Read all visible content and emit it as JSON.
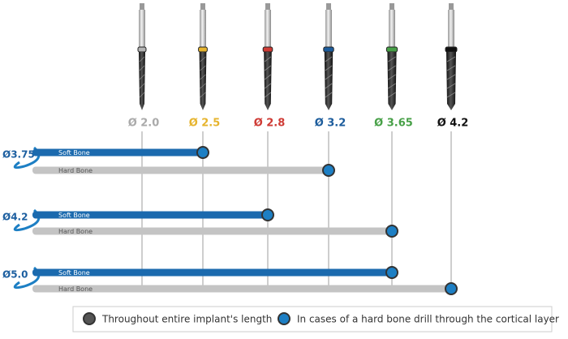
{
  "drills": [
    {
      "label": "Ø 2.0",
      "color": "#b5b5b5"
    },
    {
      "label": "Ø 2.5",
      "color": "#e6b42e"
    },
    {
      "label": "Ø 2.8",
      "color": "#cf3b35"
    },
    {
      "label": "Ø 3.2",
      "color": "#1c5c9c"
    },
    {
      "label": "Ø 3.65",
      "color": "#47a047"
    },
    {
      "label": "Ø 4.2",
      "color": "#111111"
    }
  ],
  "implants": [
    {
      "label": "Ø3.75",
      "soft_bone": {
        "label": "Soft Bone",
        "end": "Ø 2.5"
      },
      "hard_bone": {
        "label": "Hard Bone",
        "end": "Ø 3.2"
      }
    },
    {
      "label": "Ø4.2",
      "soft_bone": {
        "label": "Soft Bone",
        "end": "Ø 2.8"
      },
      "hard_bone": {
        "label": "Hard Bone",
        "end": "Ø 3.65"
      }
    },
    {
      "label": "Ø5.0",
      "soft_bone": {
        "label": "Soft Bone",
        "end": "Ø 3.65"
      },
      "hard_bone": {
        "label": "Hard Bone",
        "end": "Ø 4.2"
      }
    }
  ],
  "legend": [
    {
      "label": "Throughout entire implant's length",
      "color": "#555555"
    },
    {
      "label": "In cases of a hard bone drill through the cortical layer",
      "color": "#1d7fc4"
    }
  ]
}
